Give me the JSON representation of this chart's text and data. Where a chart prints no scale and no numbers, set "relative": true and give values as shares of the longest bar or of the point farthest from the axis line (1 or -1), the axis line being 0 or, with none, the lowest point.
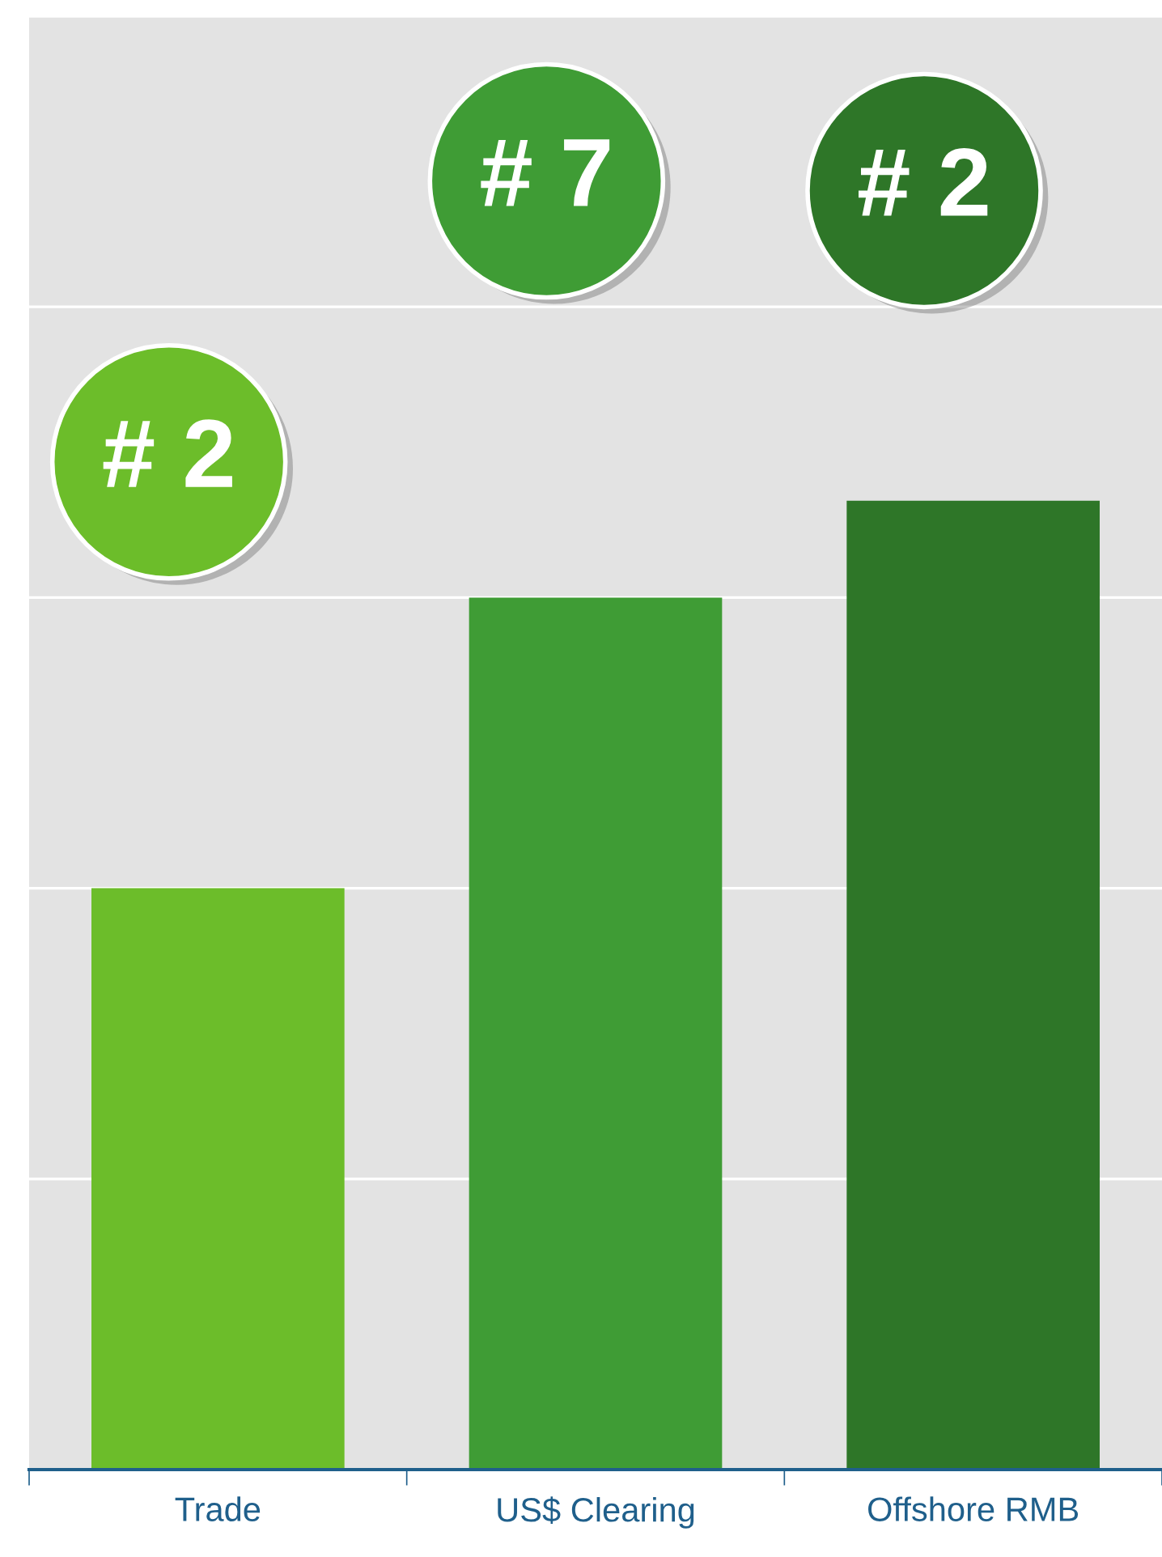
{
  "chart_data": {
    "type": "bar",
    "relative": true,
    "categories": [
      "Trade",
      "US$ Clearing",
      "Offshore RMB"
    ],
    "values": [
      0.6,
      0.9,
      1.0
    ],
    "colors": [
      "#6cbd2a",
      "#3f9c35",
      "#2e7628"
    ],
    "annotations": [
      "# 2",
      "# 7",
      "# 2"
    ],
    "grid": "y"
  }
}
